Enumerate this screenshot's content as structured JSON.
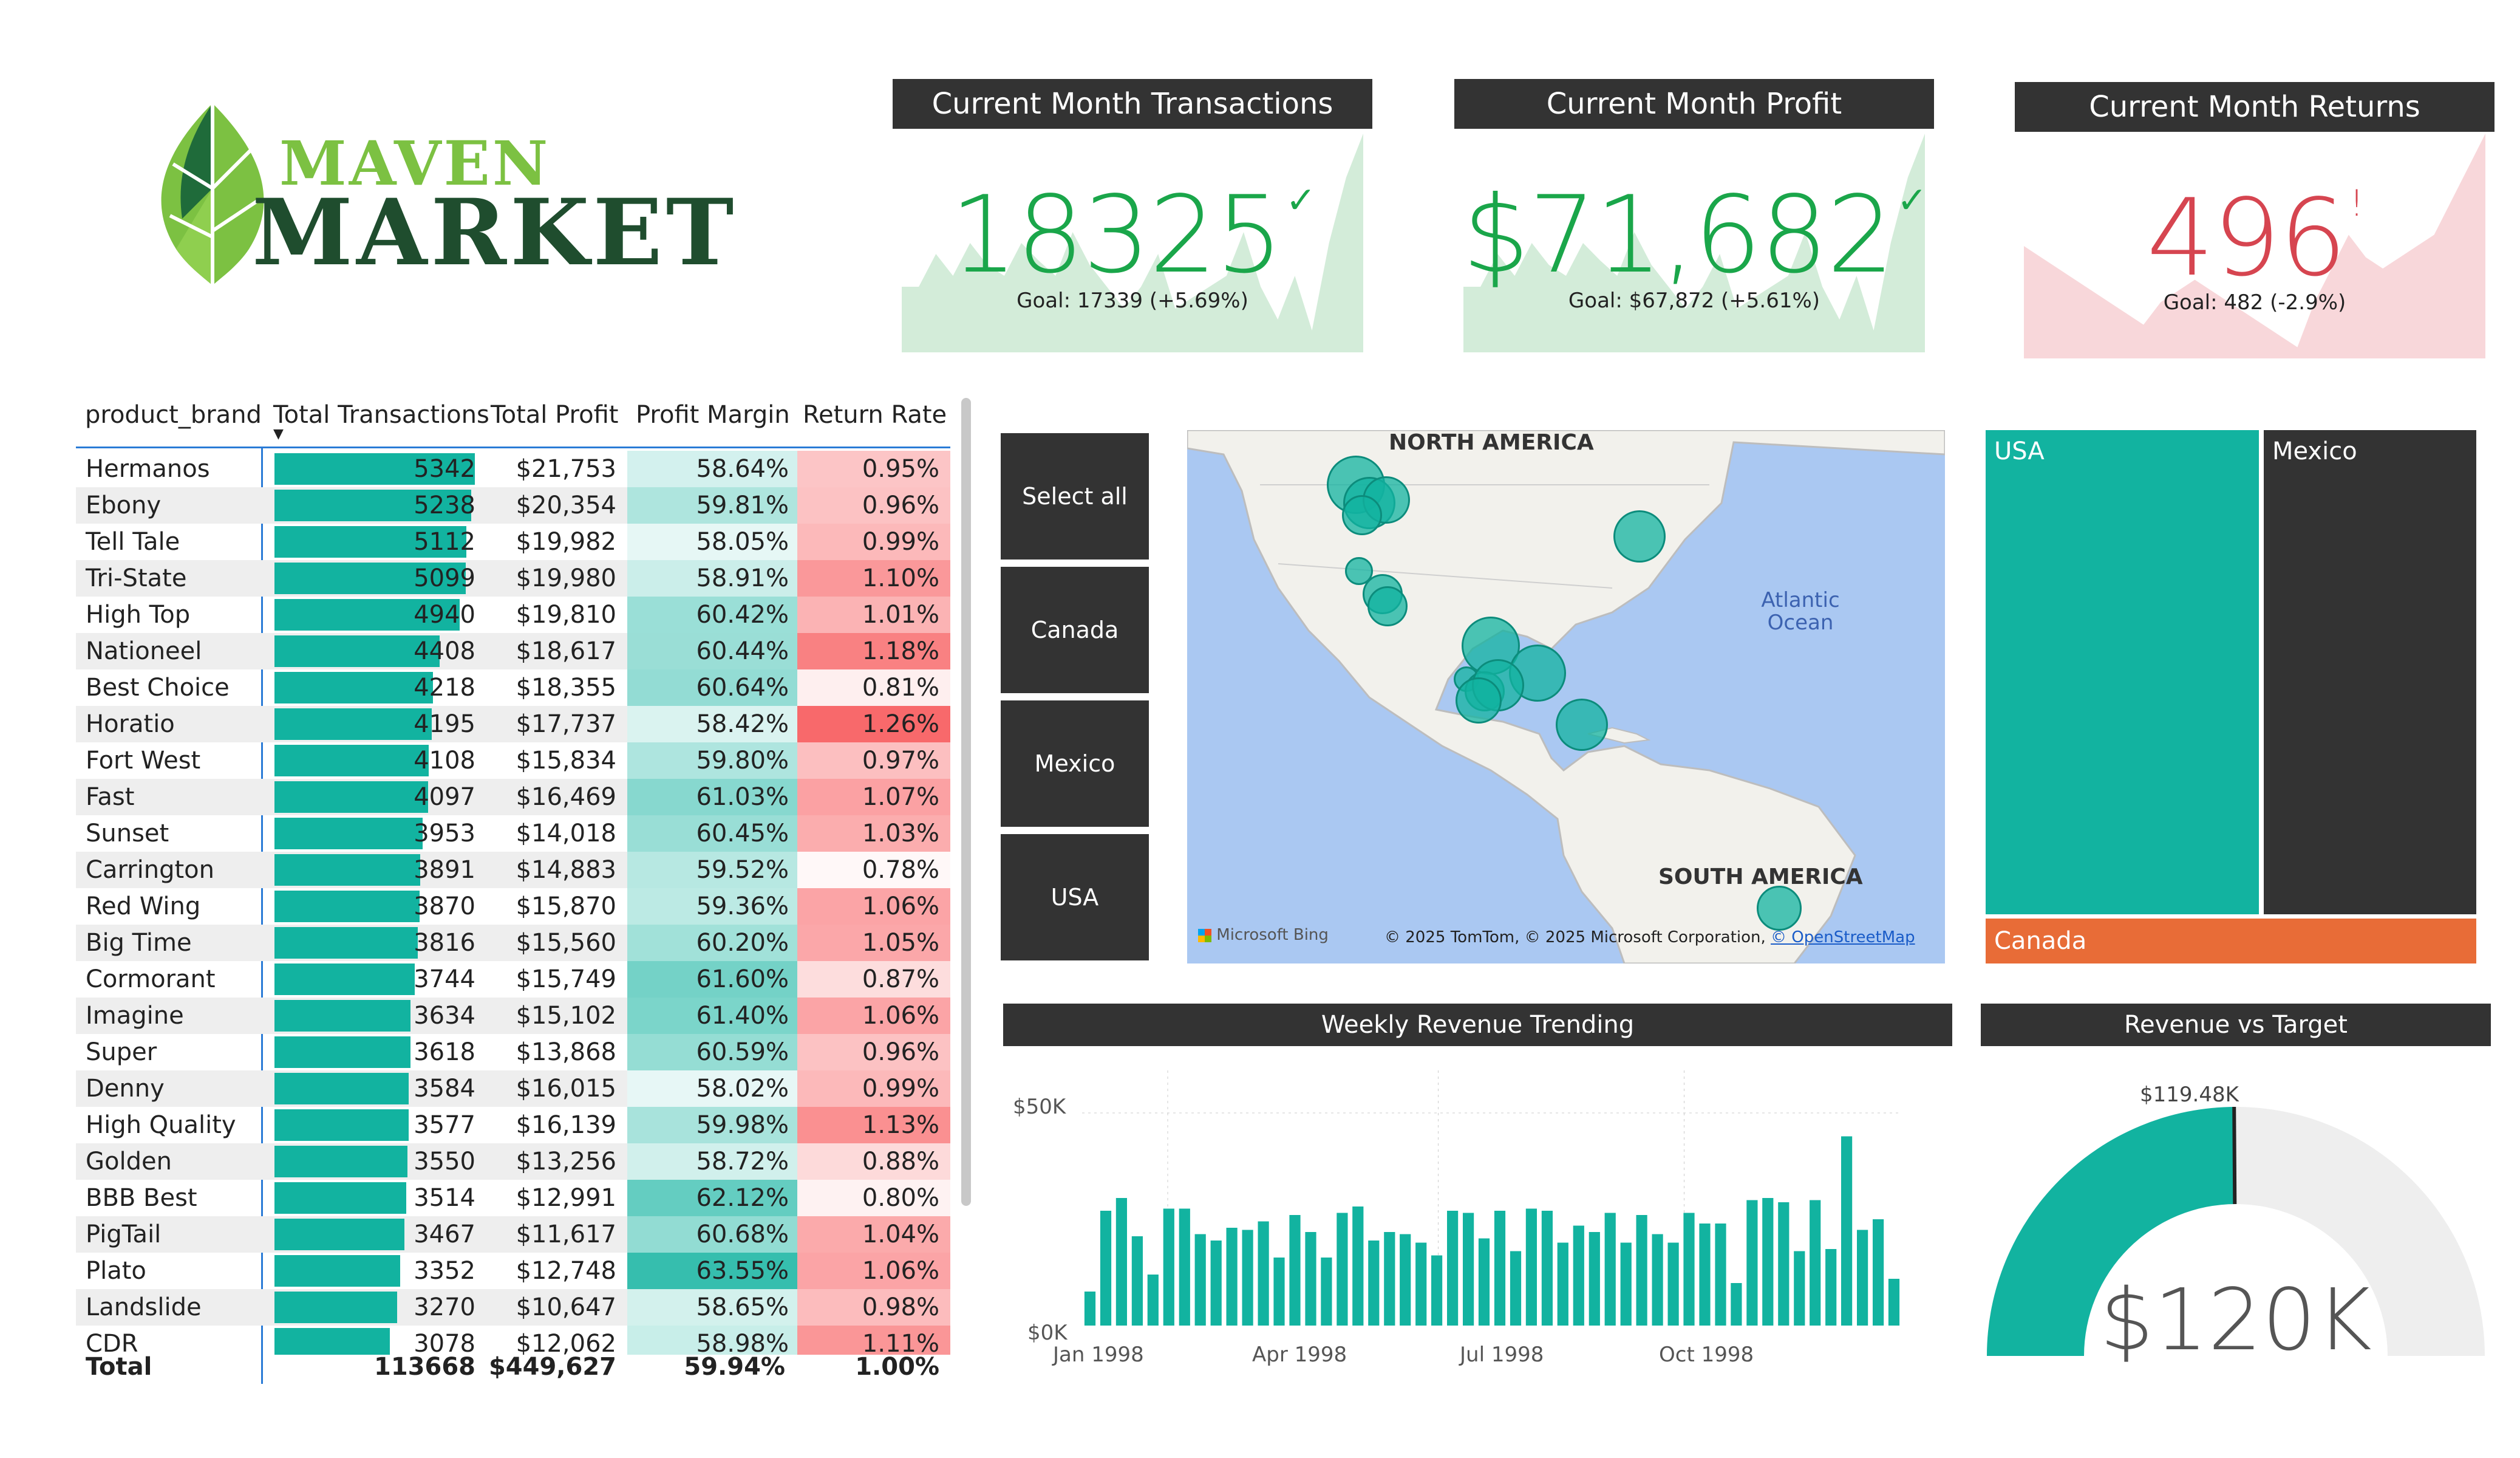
{
  "logo": {
    "line1": "MAVEN",
    "line2": "MARKET"
  },
  "kpis": [
    {
      "title": "Current Month Transactions",
      "value": "18325",
      "mark": "✓",
      "goal": "Goal: 17339 (+5.69%)",
      "color": "#1aa64a",
      "trend_color": "#d3ecd9",
      "status": "above-goal"
    },
    {
      "title": "Current Month Profit",
      "value": "$71,682",
      "mark": "✓",
      "goal": "Goal: $67,872 (+5.61%)",
      "color": "#1aa64a",
      "trend_color": "#d3ecd9",
      "status": "above-goal"
    },
    {
      "title": "Current Month Returns",
      "value": "496",
      "mark": "!",
      "goal": "Goal: 482 (-2.9%)",
      "color": "#d64550",
      "trend_color": "#f8d7da",
      "status": "above-goal-bad"
    }
  ],
  "table": {
    "headers": [
      "product_brand",
      "Total Transactions",
      "Total Profit",
      "Profit Margin",
      "Return Rate"
    ],
    "sort_indicator": "▼",
    "rows": [
      {
        "brand": "Hermanos",
        "tx": "5342",
        "profit": "$21,753",
        "margin": "58.64%",
        "rr": "0.95%"
      },
      {
        "brand": "Ebony",
        "tx": "5238",
        "profit": "$20,354",
        "margin": "59.81%",
        "rr": "0.96%"
      },
      {
        "brand": "Tell Tale",
        "tx": "5112",
        "profit": "$19,982",
        "margin": "58.05%",
        "rr": "0.99%"
      },
      {
        "brand": "Tri-State",
        "tx": "5099",
        "profit": "$19,980",
        "margin": "58.91%",
        "rr": "1.10%"
      },
      {
        "brand": "High Top",
        "tx": "4940",
        "profit": "$19,810",
        "margin": "60.42%",
        "rr": "1.01%"
      },
      {
        "brand": "Nationeel",
        "tx": "4408",
        "profit": "$18,617",
        "margin": "60.44%",
        "rr": "1.18%"
      },
      {
        "brand": "Best Choice",
        "tx": "4218",
        "profit": "$18,355",
        "margin": "60.64%",
        "rr": "0.81%"
      },
      {
        "brand": "Horatio",
        "tx": "4195",
        "profit": "$17,737",
        "margin": "58.42%",
        "rr": "1.26%"
      },
      {
        "brand": "Fort West",
        "tx": "4108",
        "profit": "$15,834",
        "margin": "59.80%",
        "rr": "0.97%"
      },
      {
        "brand": "Fast",
        "tx": "4097",
        "profit": "$16,469",
        "margin": "61.03%",
        "rr": "1.07%"
      },
      {
        "brand": "Sunset",
        "tx": "3953",
        "profit": "$14,018",
        "margin": "60.45%",
        "rr": "1.03%"
      },
      {
        "brand": "Carrington",
        "tx": "3891",
        "profit": "$14,883",
        "margin": "59.52%",
        "rr": "0.78%"
      },
      {
        "brand": "Red Wing",
        "tx": "3870",
        "profit": "$15,870",
        "margin": "59.36%",
        "rr": "1.06%"
      },
      {
        "brand": "Big Time",
        "tx": "3816",
        "profit": "$15,560",
        "margin": "60.20%",
        "rr": "1.05%"
      },
      {
        "brand": "Cormorant",
        "tx": "3744",
        "profit": "$15,749",
        "margin": "61.60%",
        "rr": "0.87%"
      },
      {
        "brand": "Imagine",
        "tx": "3634",
        "profit": "$15,102",
        "margin": "61.40%",
        "rr": "1.06%"
      },
      {
        "brand": "Super",
        "tx": "3618",
        "profit": "$13,868",
        "margin": "60.59%",
        "rr": "0.96%"
      },
      {
        "brand": "Denny",
        "tx": "3584",
        "profit": "$16,015",
        "margin": "58.02%",
        "rr": "0.99%"
      },
      {
        "brand": "High Quality",
        "tx": "3577",
        "profit": "$16,139",
        "margin": "59.98%",
        "rr": "1.13%"
      },
      {
        "brand": "Golden",
        "tx": "3550",
        "profit": "$13,256",
        "margin": "58.72%",
        "rr": "0.88%"
      },
      {
        "brand": "BBB Best",
        "tx": "3514",
        "profit": "$12,991",
        "margin": "62.12%",
        "rr": "0.80%"
      },
      {
        "brand": "PigTail",
        "tx": "3467",
        "profit": "$11,617",
        "margin": "60.68%",
        "rr": "1.04%"
      },
      {
        "brand": "Plato",
        "tx": "3352",
        "profit": "$12,748",
        "margin": "63.55%",
        "rr": "1.06%"
      },
      {
        "brand": "Landslide",
        "tx": "3270",
        "profit": "$10,647",
        "margin": "58.65%",
        "rr": "0.98%"
      },
      {
        "brand": "CDR",
        "tx": "3078",
        "profit": "$12,062",
        "margin": "58.98%",
        "rr": "1.11%"
      }
    ],
    "total": {
      "label": "Total",
      "tx": "113668",
      "profit": "$449,627",
      "margin": "59.94%",
      "rr": "1.00%"
    }
  },
  "slicer": {
    "buttons": [
      "Select all",
      "Canada",
      "Mexico",
      "USA"
    ]
  },
  "map": {
    "labels": {
      "na": "NORTH AMERICA",
      "sa": "SOUTH AMERICA",
      "ocean": "Atlantic\nOcean"
    },
    "bing": "Microsoft Bing",
    "copyright": "© 2025 TomTom, © 2025 Microsoft Corporation,",
    "osm": "© OpenStreetMap"
  },
  "treemap": {
    "usa": "USA",
    "mexico": "Mexico",
    "canada": "Canada",
    "colors": {
      "usa": "#12b3a0",
      "mexico": "#333333",
      "canada": "#e86c37"
    }
  },
  "weekly": {
    "title": "Weekly Revenue Trending",
    "y_ticks": [
      "$50K",
      "$0K"
    ],
    "x_ticks": [
      "Jan 1998",
      "Apr 1998",
      "Jul 1998",
      "Oct 1998"
    ]
  },
  "gauge": {
    "title": "Revenue vs Target",
    "target_label": "$119.48K",
    "value": "$120K"
  },
  "chart_data": [
    {
      "type": "bar",
      "title": "Weekly Revenue Trending",
      "ylabel": "",
      "xlabel": "",
      "ylim": [
        0,
        60000
      ],
      "series": [
        {
          "values": [
            8000,
            27000,
            30000,
            21000,
            12000,
            27500,
            27500,
            21500,
            20000,
            23000,
            22500,
            24500,
            16000,
            26000,
            22000,
            16000,
            26500,
            28000,
            20000,
            22000,
            21500,
            19500,
            16500,
            27000,
            26500,
            20500,
            27000,
            17500,
            27500,
            27000,
            19500,
            23500,
            22000,
            26500,
            19500,
            26000,
            21500,
            19500,
            26500,
            24000,
            24000,
            10000,
            29500,
            30000,
            29000,
            17500,
            29500,
            18000,
            44500,
            22500,
            25000,
            11000
          ]
        }
      ],
      "color": "#12b3a0"
    },
    {
      "type": "gauge",
      "title": "Revenue vs Target",
      "value": 120000,
      "target": 119480,
      "max": 240000,
      "fill_color": "#12b3a0",
      "track_color": "#eeeeee"
    },
    {
      "type": "area",
      "title": "Current Month Transactions",
      "values": [
        0.3,
        0.3,
        0.45,
        0.35,
        0.5,
        0.4,
        0.35,
        0.5,
        0.42,
        0.35,
        0.55,
        0.4,
        0.3,
        0.2,
        0.3,
        0.45,
        0.2,
        0.25,
        0.3,
        0.35,
        0.55,
        0.3,
        0.15,
        0.35,
        0.1,
        0.5,
        0.8,
        1.0
      ]
    },
    {
      "type": "area",
      "title": "Current Month Profit",
      "values": [
        0.3,
        0.3,
        0.45,
        0.35,
        0.5,
        0.4,
        0.35,
        0.5,
        0.42,
        0.35,
        0.55,
        0.4,
        0.3,
        0.2,
        0.3,
        0.45,
        0.2,
        0.25,
        0.3,
        0.35,
        0.55,
        0.3,
        0.15,
        0.35,
        0.1,
        0.5,
        0.8,
        1.0
      ]
    },
    {
      "type": "area",
      "title": "Current Month Returns",
      "values": [
        0.5,
        0.45,
        0.4,
        0.35,
        0.3,
        0.25,
        0.2,
        0.15,
        0.25,
        0.3,
        0.35,
        0.3,
        0.25,
        0.2,
        0.15,
        0.1,
        0.05,
        0.25,
        0.4,
        0.55,
        0.45,
        0.4,
        0.45,
        0.5,
        0.55,
        0.7,
        0.85,
        1.0
      ]
    }
  ]
}
